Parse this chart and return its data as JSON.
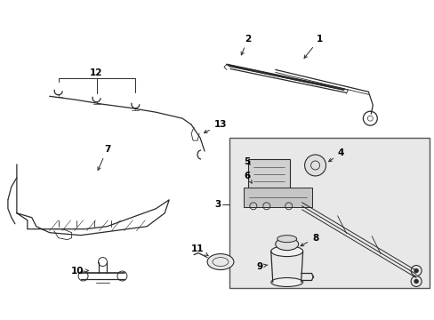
{
  "background_color": "#ffffff",
  "line_color": "#2a2a2a",
  "label_color": "#000000",
  "fig_width": 4.89,
  "fig_height": 3.6,
  "dpi": 100,
  "box_color": "#e8e8e8",
  "part_fill": "#f5f5f5",
  "part_edge": "#2a2a2a"
}
